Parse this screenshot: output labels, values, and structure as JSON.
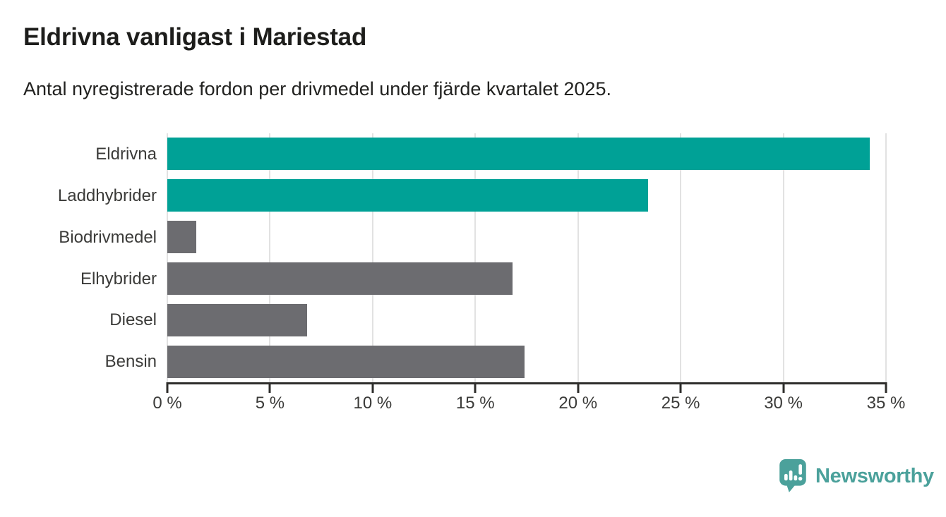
{
  "header": {
    "title": "Eldrivna vanligast i Mariestad",
    "subtitle": "Antal nyregistrerade fordon per drivmedel under fjärde kvartalet 2025."
  },
  "chart_data": {
    "type": "bar",
    "orientation": "horizontal",
    "title": "Eldrivna vanligast i Mariestad",
    "subtitle": "Antal nyregistrerade fordon per drivmedel under fjärde kvartalet 2025.",
    "categories": [
      "Eldrivna",
      "Laddhybrider",
      "Biodrivmedel",
      "Elhybrider",
      "Diesel",
      "Bensin"
    ],
    "values": [
      34.2,
      23.4,
      1.4,
      16.8,
      6.8,
      17.4
    ],
    "unit": "%",
    "bar_colors": [
      "#00A196",
      "#00A196",
      "#6C6C70",
      "#6C6C70",
      "#6C6C70",
      "#6C6C70"
    ],
    "highlight_color": "#00A196",
    "default_color": "#6C6C70",
    "xlabel": "",
    "ylabel": "",
    "xlim": [
      0,
      35
    ],
    "x_ticks": [
      0,
      5,
      10,
      15,
      20,
      25,
      30,
      35
    ],
    "x_tick_labels": [
      "0 %",
      "5 %",
      "10 %",
      "15 %",
      "20 %",
      "25 %",
      "30 %",
      "35 %"
    ],
    "grid": "vertical",
    "gridline_color": "#E2E2E2",
    "axis_color": "#2E2D2B",
    "legend": "none"
  },
  "footer": {
    "brand": "Newsworthy",
    "brand_color": "#4BA19B"
  }
}
